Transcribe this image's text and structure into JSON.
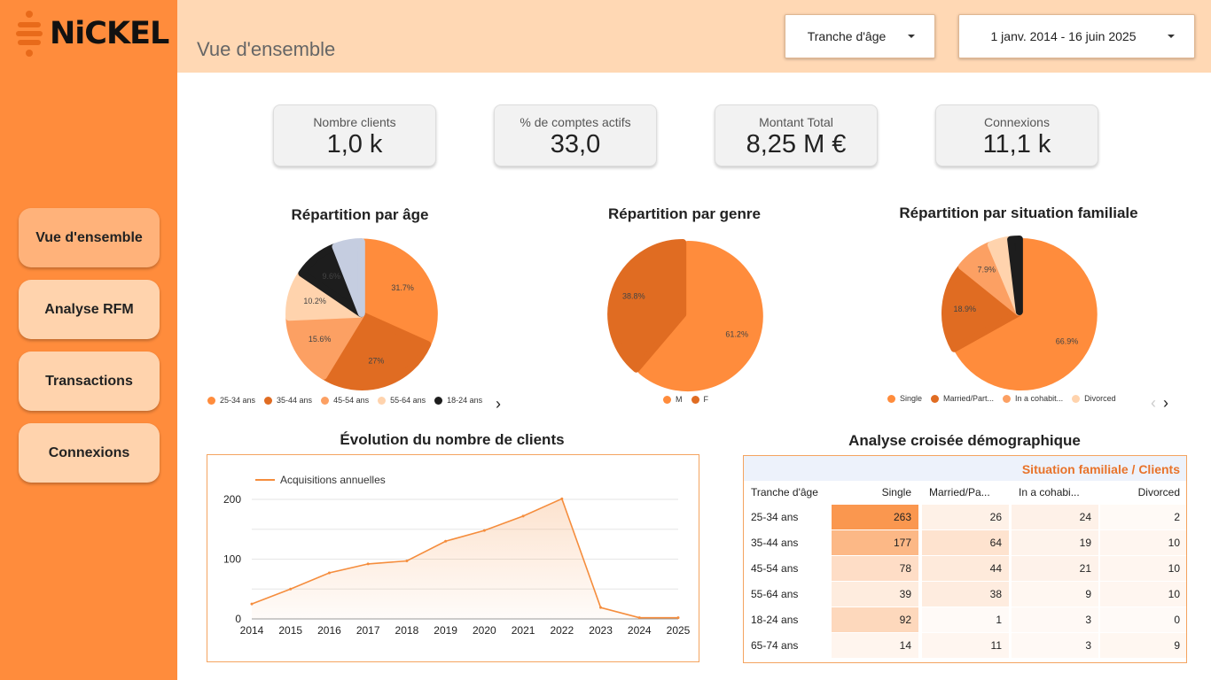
{
  "brand": {
    "name": "NiCKEL"
  },
  "nav": [
    {
      "label": "Vue d'ensemble",
      "active": true
    },
    {
      "label": "Analyse RFM",
      "active": false
    },
    {
      "label": "Transactions",
      "active": false
    },
    {
      "label": "Connexions",
      "active": false
    }
  ],
  "header": {
    "title": "Vue d'ensemble",
    "age_filter": "Tranche d'âge",
    "date_range": "1 janv. 2014 - 16 juin 2025"
  },
  "kpis": [
    {
      "label": "Nombre clients",
      "value": "1,0 k"
    },
    {
      "label": "% de comptes actifs",
      "value": "33,0"
    },
    {
      "label": "Montant Total",
      "value": "8,25 M €"
    },
    {
      "label": "Connexions",
      "value": "11,1 k"
    }
  ],
  "colors": {
    "orange": "#ff8c3c",
    "dark_orange": "#e06c22",
    "light_orange": "#fca063",
    "peach": "#ffd3ad",
    "black": "#1d1d1d",
    "lavender": "#c5cde0"
  },
  "charts": {
    "age": {
      "title": "Répartition par âge",
      "legend": [
        "25-34 ans",
        "35-44 ans",
        "45-54 ans",
        "55-64 ans",
        "18-24 ans"
      ]
    },
    "gender": {
      "title": "Répartition par genre",
      "legend": [
        "M",
        "F"
      ]
    },
    "family": {
      "title": "Répartition par situation familiale",
      "legend": [
        "Single",
        "Married/Part...",
        "In a cohabit...",
        "Divorced"
      ]
    },
    "evolution": {
      "title": "Évolution du nombre de clients",
      "legend": "Acquisitions annuelles"
    },
    "crosstab": {
      "title": "Analyse croisée démographique"
    }
  },
  "chart_data": [
    {
      "type": "pie",
      "title": "Répartition par âge",
      "slices": [
        {
          "label": "25-34 ans",
          "value": 31.7,
          "text": "31.7%",
          "color": "#ff8c3c"
        },
        {
          "label": "35-44 ans",
          "value": 27.0,
          "text": "27%",
          "color": "#e06c22"
        },
        {
          "label": "45-54 ans",
          "value": 15.6,
          "text": "15.6%",
          "color": "#fca063"
        },
        {
          "label": "55-64 ans",
          "value": 10.2,
          "text": "10.2%",
          "color": "#ffd3ad"
        },
        {
          "label": "18-24 ans",
          "value": 9.6,
          "text": "9.6%",
          "color": "#1d1d1d"
        },
        {
          "label": "",
          "value": 5.9,
          "text": "",
          "color": "#c5cde0"
        }
      ]
    },
    {
      "type": "pie",
      "title": "Répartition par genre",
      "slices": [
        {
          "label": "M",
          "value": 61.2,
          "text": "61.2%",
          "color": "#ff8c3c"
        },
        {
          "label": "F",
          "value": 38.8,
          "text": "38.8%",
          "color": "#e06c22"
        }
      ]
    },
    {
      "type": "pie",
      "title": "Répartition par situation familiale",
      "slices": [
        {
          "label": "Single",
          "value": 66.9,
          "text": "66.9%",
          "color": "#ff8c3c"
        },
        {
          "label": "Married/Part...",
          "value": 18.9,
          "text": "18.9%",
          "color": "#e06c22"
        },
        {
          "label": "In a cohabit...",
          "value": 7.9,
          "text": "7.9%",
          "color": "#fca063"
        },
        {
          "label": "Divorced",
          "value": 4.4,
          "text": "",
          "color": "#ffd3ad"
        },
        {
          "label": "",
          "value": 1.9,
          "text": "",
          "color": "#1d1d1d"
        }
      ]
    },
    {
      "type": "area",
      "title": "Évolution du nombre de clients",
      "series": [
        {
          "name": "Acquisitions annuelles",
          "values": [
            25,
            50,
            77,
            92,
            97,
            130,
            148,
            172,
            201,
            19,
            2,
            2
          ]
        }
      ],
      "x": [
        "2014",
        "2015",
        "2016",
        "2017",
        "2018",
        "2019",
        "2020",
        "2021",
        "2022",
        "2023",
        "2024",
        "2025"
      ],
      "ylim": [
        0,
        200
      ],
      "yticks": [
        0,
        100,
        200
      ],
      "grid": true,
      "legend": "top-left"
    },
    {
      "type": "table",
      "title": "Analyse croisée démographique",
      "header_label": "Situation familiale / Clients",
      "row_header": "Tranche d'âge",
      "columns": [
        "Single",
        "Married/Pa...",
        "In a cohabi...",
        "Divorced"
      ],
      "rows": [
        {
          "label": "25-34 ans",
          "values": [
            263,
            26,
            24,
            2
          ]
        },
        {
          "label": "35-44 ans",
          "values": [
            177,
            64,
            19,
            10
          ]
        },
        {
          "label": "45-54 ans",
          "values": [
            78,
            44,
            21,
            10
          ]
        },
        {
          "label": "55-64 ans",
          "values": [
            39,
            38,
            9,
            10
          ]
        },
        {
          "label": "18-24 ans",
          "values": [
            92,
            1,
            3,
            0
          ]
        },
        {
          "label": "65-74 ans",
          "values": [
            14,
            11,
            3,
            9
          ]
        }
      ]
    }
  ]
}
